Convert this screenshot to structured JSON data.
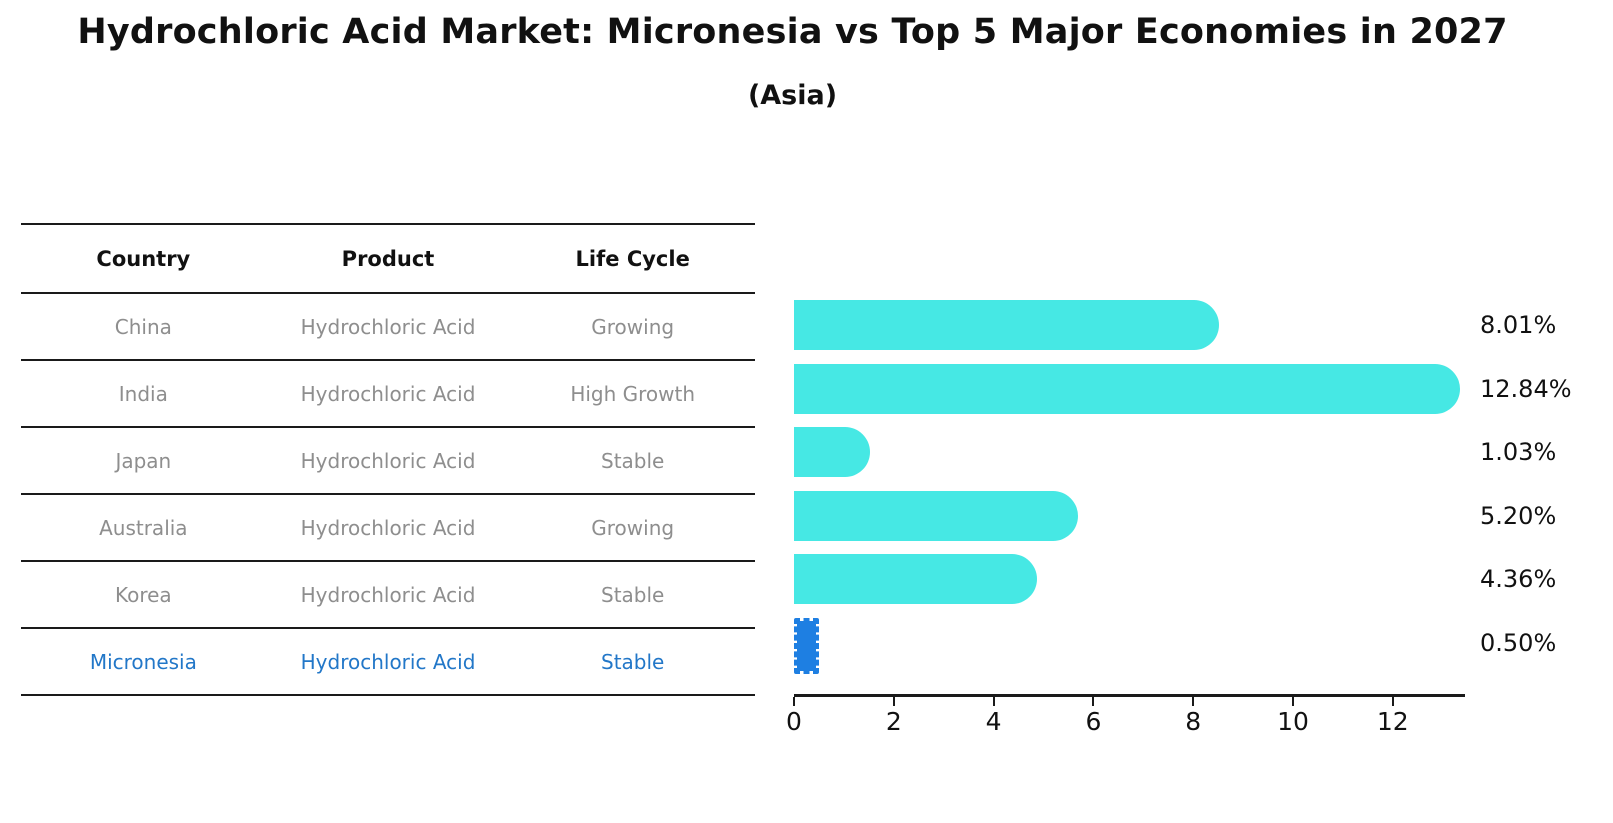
{
  "title": "Hydrochloric Acid Market: Micronesia vs Top 5 Major Economies in 2027",
  "subtitle": "(Asia)",
  "table": {
    "headers": [
      "Country",
      "Product",
      "Life Cycle"
    ],
    "rows": [
      {
        "country": "China",
        "product": "Hydrochloric Acid",
        "life_cycle": "Growing",
        "highlight": false
      },
      {
        "country": "India",
        "product": "Hydrochloric Acid",
        "life_cycle": "High Growth",
        "highlight": false
      },
      {
        "country": "Japan",
        "product": "Hydrochloric Acid",
        "life_cycle": "Stable",
        "highlight": false
      },
      {
        "country": "Australia",
        "product": "Hydrochloric Acid",
        "life_cycle": "Growing",
        "highlight": false
      },
      {
        "country": "Korea",
        "product": "Hydrochloric Acid",
        "life_cycle": "Stable",
        "highlight": false
      },
      {
        "country": "Micronesia",
        "product": "Hydrochloric Acid",
        "life_cycle": "Stable",
        "highlight": true
      }
    ]
  },
  "chart_data": {
    "type": "bar",
    "orientation": "horizontal",
    "title": "Hydrochloric Acid Market: Micronesia vs Top 5 Major Economies in 2027",
    "subtitle": "(Asia)",
    "categories": [
      "China",
      "India",
      "Japan",
      "Australia",
      "Korea",
      "Micronesia"
    ],
    "values": [
      8.01,
      12.84,
      1.03,
      5.2,
      4.36,
      0.5
    ],
    "value_labels": [
      "8.01%",
      "12.84%",
      "1.03%",
      "5.20%",
      "4.36%",
      "0.50%"
    ],
    "x_tick_labels": [
      "0",
      "2",
      "4",
      "6",
      "8",
      "10",
      "12"
    ],
    "x_tick_values": [
      0,
      2,
      4,
      6,
      8,
      10,
      12
    ],
    "xlim": [
      0,
      13.45
    ],
    "grid": false,
    "legend": false,
    "highlight_index": 5
  },
  "colors": {
    "bar": "#46e8e4",
    "highlight_bar": "#1e7fe2",
    "highlight_text": "#2277c8",
    "row_text": "#8e8e8e",
    "heading_text": "#111111",
    "line": "#1a1a1a"
  }
}
